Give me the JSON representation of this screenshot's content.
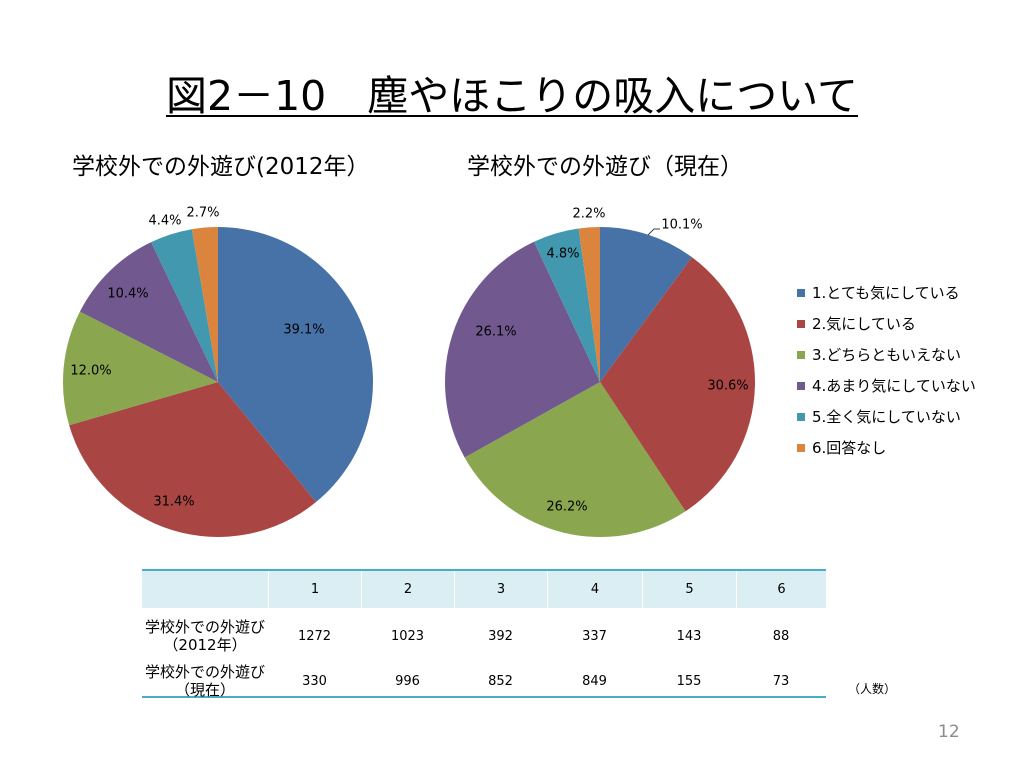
{
  "slide": {
    "title": "図2－10　塵やほこりの吸入について",
    "page_number": "12"
  },
  "colors": {
    "series": [
      "#4672a8",
      "#a94643",
      "#8aa64f",
      "#71588f",
      "#4198af",
      "#db843d"
    ],
    "table_header_bg": "#dbeef3",
    "table_rule": "#4bacc6"
  },
  "legend": {
    "placement": "right",
    "items": [
      "1.とても気にしている",
      "2.気にしている",
      "3.どちらともいえない",
      "4.あまり気にしていない",
      "5.全く気にしていない",
      "6.回答なし"
    ]
  },
  "chart_data": [
    {
      "type": "pie",
      "title": "学校外での外遊び(2012年）",
      "values": [
        39.1,
        31.4,
        12.0,
        10.4,
        4.4,
        2.7
      ],
      "data_labels": [
        "39.1%",
        "31.4%",
        "12.0%",
        "10.4%",
        "4.4%",
        "2.7%"
      ],
      "start": "top",
      "direction": "clockwise",
      "legend": "right"
    },
    {
      "type": "pie",
      "title": "学校外での外遊び（現在）",
      "values": [
        10.1,
        30.6,
        26.2,
        26.1,
        4.8,
        2.2
      ],
      "data_labels": [
        "10.1%",
        "30.6%",
        "26.2%",
        "26.1%",
        "4.8%",
        "2.2%"
      ],
      "start": "top",
      "direction": "clockwise",
      "legend": "right"
    }
  ],
  "table": {
    "header": [
      "1",
      "2",
      "3",
      "4",
      "5",
      "6"
    ],
    "rows": [
      {
        "label": [
          "学校外での外遊び",
          "（2012年）"
        ],
        "values": [
          1272,
          1023,
          392,
          337,
          143,
          88
        ]
      },
      {
        "label": [
          "学校外での外遊び",
          "（現在）"
        ],
        "values": [
          330,
          996,
          852,
          849,
          155,
          73
        ]
      }
    ],
    "unit_note": "（人数）"
  }
}
